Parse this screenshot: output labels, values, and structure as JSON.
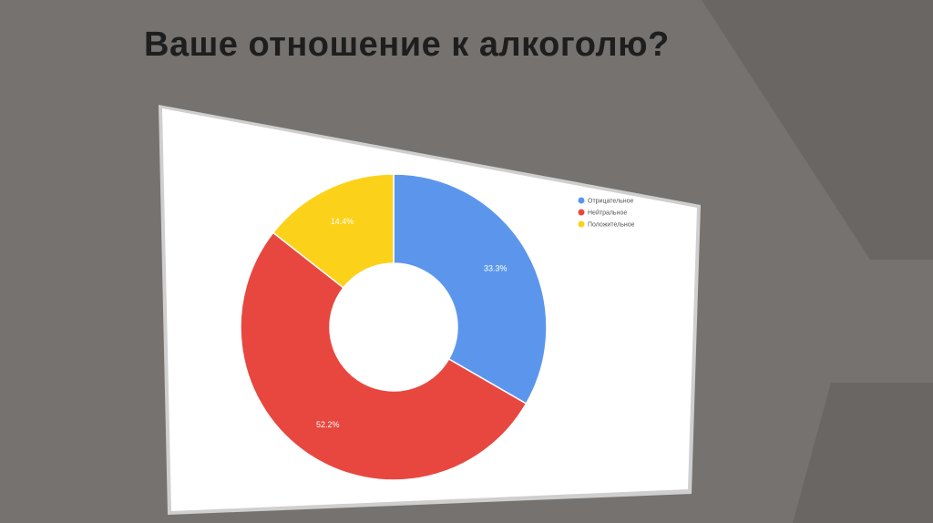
{
  "slide": {
    "title": "Ваше отношение к алкоголю?",
    "background": "#76726f"
  },
  "chart_data": {
    "type": "pie",
    "donut": true,
    "categories": [
      "Отрицательное",
      "Нейтральное",
      "Положительное"
    ],
    "values": [
      33.3,
      52.2,
      14.4
    ],
    "labels": [
      "33.3%",
      "52.2%",
      "14.4%"
    ],
    "colors": [
      "#5c96ec",
      "#e8473f",
      "#fcd11a"
    ],
    "legend_position": "top-right"
  }
}
